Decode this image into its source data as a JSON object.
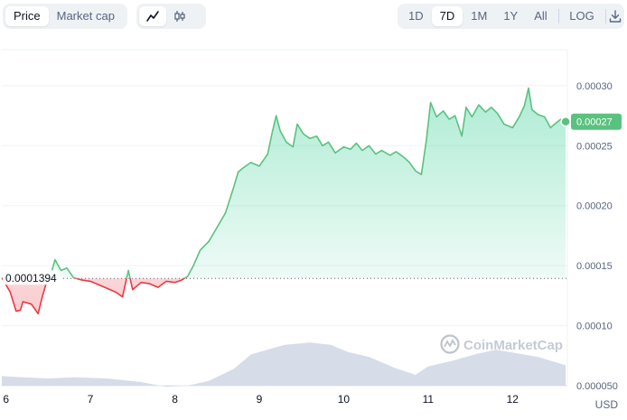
{
  "toolbar": {
    "tabs": [
      {
        "label": "Price",
        "active": true
      },
      {
        "label": "Market cap",
        "active": false
      }
    ],
    "chart_modes": [
      {
        "icon": "line-chart-icon",
        "active": true
      },
      {
        "icon": "candlestick-icon",
        "active": false
      }
    ],
    "ranges": [
      {
        "label": "1D",
        "active": false
      },
      {
        "label": "7D",
        "active": true
      },
      {
        "label": "1M",
        "active": false
      },
      {
        "label": "1Y",
        "active": false
      },
      {
        "label": "All",
        "active": false
      }
    ],
    "log_label": "LOG",
    "download_icon": "download-icon"
  },
  "currency_label": "USD",
  "watermark": "CoinMarketCap",
  "colors": {
    "up": "#16c784",
    "up_line": "#5ac27f",
    "down": "#ea3943",
    "volume": "#cfd6e4",
    "grid": "#eff2f5",
    "ref_line": "#58667e"
  },
  "chart_data": {
    "type": "line",
    "reference_price": 0.0001394,
    "reference_label": "0.0001394",
    "current_price": 0.00027,
    "current_label": "0.00027",
    "ylim": [
      5e-05,
      0.00033
    ],
    "y_ticks": [
      5e-05,
      0.0001,
      0.00015,
      0.0002,
      0.00025,
      0.0003
    ],
    "y_tick_labels": [
      "0.000050",
      "0.00010",
      "0.00015",
      "0.00020",
      "0.00025",
      "0.00030"
    ],
    "xlim": [
      5.95,
      12.65
    ],
    "x_ticks": [
      6,
      7,
      8,
      9,
      10,
      11,
      12
    ],
    "x_tick_labels": [
      "6",
      "7",
      "8",
      "9",
      "10",
      "11",
      "12"
    ],
    "series": [
      {
        "values": [
          [
            5.95,
            0.00014
          ],
          [
            6.05,
            0.000128
          ],
          [
            6.12,
            0.000112
          ],
          [
            6.17,
            0.000113
          ],
          [
            6.2,
            0.00012
          ],
          [
            6.3,
            0.000118
          ],
          [
            6.38,
            0.00011
          ],
          [
            6.43,
            0.000124
          ],
          [
            6.47,
            0.000134
          ],
          [
            6.52,
            0.00014
          ],
          [
            6.58,
            0.000155
          ],
          [
            6.65,
            0.000146
          ],
          [
            6.72,
            0.000148
          ],
          [
            6.8,
            0.00014
          ],
          [
            6.9,
            0.000138
          ],
          [
            7.0,
            0.000137
          ],
          [
            7.1,
            0.000134
          ],
          [
            7.2,
            0.000131
          ],
          [
            7.3,
            0.000128
          ],
          [
            7.38,
            0.000124
          ],
          [
            7.45,
            0.000146
          ],
          [
            7.5,
            0.00013
          ],
          [
            7.6,
            0.000136
          ],
          [
            7.7,
            0.000135
          ],
          [
            7.8,
            0.000132
          ],
          [
            7.9,
            0.000137
          ],
          [
            8.0,
            0.000136
          ],
          [
            8.08,
            0.000138
          ],
          [
            8.15,
            0.000141
          ],
          [
            8.22,
            0.00015
          ],
          [
            8.3,
            0.000163
          ],
          [
            8.4,
            0.00017
          ],
          [
            8.5,
            0.000182
          ],
          [
            8.6,
            0.000194
          ],
          [
            8.7,
            0.000216
          ],
          [
            8.75,
            0.000228
          ],
          [
            8.8,
            0.000231
          ],
          [
            8.9,
            0.000236
          ],
          [
            9.0,
            0.000233
          ],
          [
            9.1,
            0.000243
          ],
          [
            9.15,
            0.00026
          ],
          [
            9.2,
            0.000275
          ],
          [
            9.25,
            0.000262
          ],
          [
            9.32,
            0.000253
          ],
          [
            9.4,
            0.000249
          ],
          [
            9.45,
            0.000268
          ],
          [
            9.52,
            0.00026
          ],
          [
            9.6,
            0.000256
          ],
          [
            9.68,
            0.000258
          ],
          [
            9.75,
            0.00025
          ],
          [
            9.82,
            0.000253
          ],
          [
            9.9,
            0.000244
          ],
          [
            10.0,
            0.000249
          ],
          [
            10.08,
            0.000247
          ],
          [
            10.15,
            0.000252
          ],
          [
            10.22,
            0.000246
          ],
          [
            10.3,
            0.00025
          ],
          [
            10.38,
            0.000243
          ],
          [
            10.45,
            0.000246
          ],
          [
            10.55,
            0.000242
          ],
          [
            10.62,
            0.000245
          ],
          [
            10.7,
            0.000241
          ],
          [
            10.78,
            0.000236
          ],
          [
            10.85,
            0.000229
          ],
          [
            10.92,
            0.000226
          ],
          [
            10.98,
            0.000255
          ],
          [
            11.03,
            0.000286
          ],
          [
            11.1,
            0.000274
          ],
          [
            11.18,
            0.000279
          ],
          [
            11.25,
            0.000272
          ],
          [
            11.32,
            0.000275
          ],
          [
            11.4,
            0.000258
          ],
          [
            11.45,
            0.000282
          ],
          [
            11.52,
            0.000274
          ],
          [
            11.6,
            0.000284
          ],
          [
            11.68,
            0.000278
          ],
          [
            11.75,
            0.000282
          ],
          [
            11.82,
            0.000277
          ],
          [
            11.9,
            0.000268
          ],
          [
            12.0,
            0.000265
          ],
          [
            12.08,
            0.000274
          ],
          [
            12.14,
            0.000283
          ],
          [
            12.19,
            0.000298
          ],
          [
            12.23,
            0.00028
          ],
          [
            12.3,
            0.000276
          ],
          [
            12.38,
            0.000274
          ],
          [
            12.45,
            0.000265
          ],
          [
            12.5,
            0.000268
          ],
          [
            12.57,
            0.000272
          ],
          [
            12.63,
            0.00027
          ]
        ]
      }
    ],
    "volume": [
      [
        5.95,
        5.8e-05
      ],
      [
        6.2,
        5.7e-05
      ],
      [
        6.5,
        5.6e-05
      ],
      [
        6.8,
        5.7e-05
      ],
      [
        7.2,
        5.6e-05
      ],
      [
        7.6,
        5.3e-05
      ],
      [
        7.9,
        4.9e-05
      ],
      [
        8.15,
        5e-05
      ],
      [
        8.4,
        5.4e-05
      ],
      [
        8.7,
        6.4e-05
      ],
      [
        8.9,
        7.6e-05
      ],
      [
        9.1,
        8e-05
      ],
      [
        9.3,
        8.4e-05
      ],
      [
        9.6,
        8.6e-05
      ],
      [
        9.85,
        8.4e-05
      ],
      [
        10.05,
        7.8e-05
      ],
      [
        10.3,
        7.4e-05
      ],
      [
        10.6,
        6.5e-05
      ],
      [
        10.85,
        5.9e-05
      ],
      [
        11.0,
        6.6e-05
      ],
      [
        11.3,
        7.1e-05
      ],
      [
        11.55,
        7.6e-05
      ],
      [
        11.8,
        8e-05
      ],
      [
        12.05,
        7.7e-05
      ],
      [
        12.3,
        7.4e-05
      ],
      [
        12.63,
        6.7e-05
      ]
    ]
  }
}
